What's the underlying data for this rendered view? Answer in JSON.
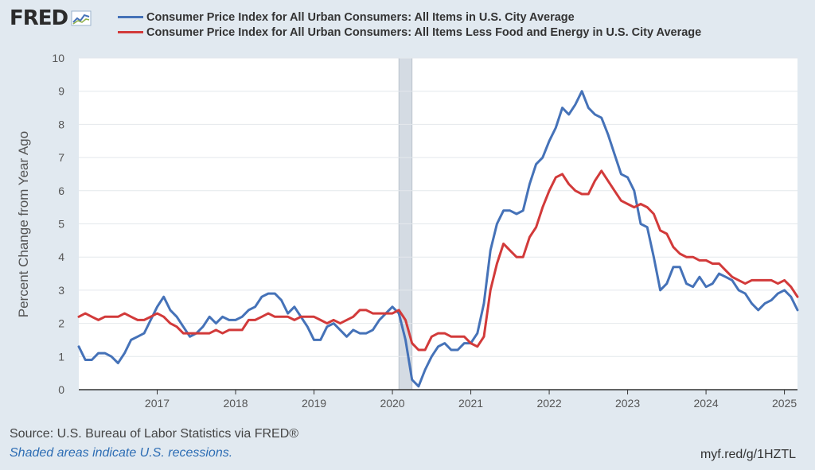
{
  "header": {
    "logo_text": "FRED",
    "logo_mark": "fred-chart-icon"
  },
  "legend": [
    {
      "label": "Consumer Price Index for All Urban Consumers: All Items in U.S. City Average",
      "color": "#4572b8"
    },
    {
      "label": "Consumer Price Index for All Urban Consumers: All Items Less Food and Energy in U.S. City Average",
      "color": "#d23a3a"
    }
  ],
  "footer": {
    "source": "Source: U.S. Bureau of Labor Statistics via FRED®",
    "note": "Shaded areas indicate U.S. recessions.",
    "url": "myf.red/g/1HZTL"
  },
  "chart_data": {
    "type": "line",
    "ylabel": "Percent Change from Year Ago",
    "ylim": [
      0,
      10
    ],
    "xlim": [
      "2016-01",
      "2025-03"
    ],
    "yticks": [
      0,
      1,
      2,
      3,
      4,
      5,
      6,
      7,
      8,
      9,
      10
    ],
    "xticks": [
      "2017",
      "2018",
      "2019",
      "2020",
      "2021",
      "2022",
      "2023",
      "2024",
      "2025"
    ],
    "grid": true,
    "recessions": [
      [
        "2020-02",
        "2020-04"
      ]
    ],
    "series": [
      {
        "name": "Consumer Price Index for All Urban Consumers: All Items in U.S. City Average",
        "color": "#4572b8",
        "points": [
          [
            "2016-01",
            1.3
          ],
          [
            "2016-02",
            0.9
          ],
          [
            "2016-03",
            0.9
          ],
          [
            "2016-04",
            1.1
          ],
          [
            "2016-05",
            1.1
          ],
          [
            "2016-06",
            1.0
          ],
          [
            "2016-07",
            0.8
          ],
          [
            "2016-08",
            1.1
          ],
          [
            "2016-09",
            1.5
          ],
          [
            "2016-10",
            1.6
          ],
          [
            "2016-11",
            1.7
          ],
          [
            "2016-12",
            2.1
          ],
          [
            "2017-01",
            2.5
          ],
          [
            "2017-02",
            2.8
          ],
          [
            "2017-03",
            2.4
          ],
          [
            "2017-04",
            2.2
          ],
          [
            "2017-05",
            1.9
          ],
          [
            "2017-06",
            1.6
          ],
          [
            "2017-07",
            1.7
          ],
          [
            "2017-08",
            1.9
          ],
          [
            "2017-09",
            2.2
          ],
          [
            "2017-10",
            2.0
          ],
          [
            "2017-11",
            2.2
          ],
          [
            "2017-12",
            2.1
          ],
          [
            "2018-01",
            2.1
          ],
          [
            "2018-02",
            2.2
          ],
          [
            "2018-03",
            2.4
          ],
          [
            "2018-04",
            2.5
          ],
          [
            "2018-05",
            2.8
          ],
          [
            "2018-06",
            2.9
          ],
          [
            "2018-07",
            2.9
          ],
          [
            "2018-08",
            2.7
          ],
          [
            "2018-09",
            2.3
          ],
          [
            "2018-10",
            2.5
          ],
          [
            "2018-11",
            2.2
          ],
          [
            "2018-12",
            1.9
          ],
          [
            "2019-01",
            1.5
          ],
          [
            "2019-02",
            1.5
          ],
          [
            "2019-03",
            1.9
          ],
          [
            "2019-04",
            2.0
          ],
          [
            "2019-05",
            1.8
          ],
          [
            "2019-06",
            1.6
          ],
          [
            "2019-07",
            1.8
          ],
          [
            "2019-08",
            1.7
          ],
          [
            "2019-09",
            1.7
          ],
          [
            "2019-10",
            1.8
          ],
          [
            "2019-11",
            2.1
          ],
          [
            "2019-12",
            2.3
          ],
          [
            "2020-01",
            2.5
          ],
          [
            "2020-02",
            2.3
          ],
          [
            "2020-03",
            1.5
          ],
          [
            "2020-04",
            0.3
          ],
          [
            "2020-05",
            0.1
          ],
          [
            "2020-06",
            0.6
          ],
          [
            "2020-07",
            1.0
          ],
          [
            "2020-08",
            1.3
          ],
          [
            "2020-09",
            1.4
          ],
          [
            "2020-10",
            1.2
          ],
          [
            "2020-11",
            1.2
          ],
          [
            "2020-12",
            1.4
          ],
          [
            "2021-01",
            1.4
          ],
          [
            "2021-02",
            1.7
          ],
          [
            "2021-03",
            2.6
          ],
          [
            "2021-04",
            4.2
          ],
          [
            "2021-05",
            5.0
          ],
          [
            "2021-06",
            5.4
          ],
          [
            "2021-07",
            5.4
          ],
          [
            "2021-08",
            5.3
          ],
          [
            "2021-09",
            5.4
          ],
          [
            "2021-10",
            6.2
          ],
          [
            "2021-11",
            6.8
          ],
          [
            "2021-12",
            7.0
          ],
          [
            "2022-01",
            7.5
          ],
          [
            "2022-02",
            7.9
          ],
          [
            "2022-03",
            8.5
          ],
          [
            "2022-04",
            8.3
          ],
          [
            "2022-05",
            8.6
          ],
          [
            "2022-06",
            9.0
          ],
          [
            "2022-07",
            8.5
          ],
          [
            "2022-08",
            8.3
          ],
          [
            "2022-09",
            8.2
          ],
          [
            "2022-10",
            7.7
          ],
          [
            "2022-11",
            7.1
          ],
          [
            "2022-12",
            6.5
          ],
          [
            "2023-01",
            6.4
          ],
          [
            "2023-02",
            6.0
          ],
          [
            "2023-03",
            5.0
          ],
          [
            "2023-04",
            4.9
          ],
          [
            "2023-05",
            4.0
          ],
          [
            "2023-06",
            3.0
          ],
          [
            "2023-07",
            3.2
          ],
          [
            "2023-08",
            3.7
          ],
          [
            "2023-09",
            3.7
          ],
          [
            "2023-10",
            3.2
          ],
          [
            "2023-11",
            3.1
          ],
          [
            "2023-12",
            3.4
          ],
          [
            "2024-01",
            3.1
          ],
          [
            "2024-02",
            3.2
          ],
          [
            "2024-03",
            3.5
          ],
          [
            "2024-04",
            3.4
          ],
          [
            "2024-05",
            3.3
          ],
          [
            "2024-06",
            3.0
          ],
          [
            "2024-07",
            2.9
          ],
          [
            "2024-08",
            2.6
          ],
          [
            "2024-09",
            2.4
          ],
          [
            "2024-10",
            2.6
          ],
          [
            "2024-11",
            2.7
          ],
          [
            "2024-12",
            2.9
          ],
          [
            "2025-01",
            3.0
          ],
          [
            "2025-02",
            2.8
          ],
          [
            "2025-03",
            2.4
          ]
        ]
      },
      {
        "name": "Consumer Price Index for All Urban Consumers: All Items Less Food and Energy in U.S. City Average",
        "color": "#d23a3a",
        "points": [
          [
            "2016-01",
            2.2
          ],
          [
            "2016-02",
            2.3
          ],
          [
            "2016-03",
            2.2
          ],
          [
            "2016-04",
            2.1
          ],
          [
            "2016-05",
            2.2
          ],
          [
            "2016-06",
            2.2
          ],
          [
            "2016-07",
            2.2
          ],
          [
            "2016-08",
            2.3
          ],
          [
            "2016-09",
            2.2
          ],
          [
            "2016-10",
            2.1
          ],
          [
            "2016-11",
            2.1
          ],
          [
            "2016-12",
            2.2
          ],
          [
            "2017-01",
            2.3
          ],
          [
            "2017-02",
            2.2
          ],
          [
            "2017-03",
            2.0
          ],
          [
            "2017-04",
            1.9
          ],
          [
            "2017-05",
            1.7
          ],
          [
            "2017-06",
            1.7
          ],
          [
            "2017-07",
            1.7
          ],
          [
            "2017-08",
            1.7
          ],
          [
            "2017-09",
            1.7
          ],
          [
            "2017-10",
            1.8
          ],
          [
            "2017-11",
            1.7
          ],
          [
            "2017-12",
            1.8
          ],
          [
            "2018-01",
            1.8
          ],
          [
            "2018-02",
            1.8
          ],
          [
            "2018-03",
            2.1
          ],
          [
            "2018-04",
            2.1
          ],
          [
            "2018-05",
            2.2
          ],
          [
            "2018-06",
            2.3
          ],
          [
            "2018-07",
            2.2
          ],
          [
            "2018-08",
            2.2
          ],
          [
            "2018-09",
            2.2
          ],
          [
            "2018-10",
            2.1
          ],
          [
            "2018-11",
            2.2
          ],
          [
            "2018-12",
            2.2
          ],
          [
            "2019-01",
            2.2
          ],
          [
            "2019-02",
            2.1
          ],
          [
            "2019-03",
            2.0
          ],
          [
            "2019-04",
            2.1
          ],
          [
            "2019-05",
            2.0
          ],
          [
            "2019-06",
            2.1
          ],
          [
            "2019-07",
            2.2
          ],
          [
            "2019-08",
            2.4
          ],
          [
            "2019-09",
            2.4
          ],
          [
            "2019-10",
            2.3
          ],
          [
            "2019-11",
            2.3
          ],
          [
            "2019-12",
            2.3
          ],
          [
            "2020-01",
            2.3
          ],
          [
            "2020-02",
            2.4
          ],
          [
            "2020-03",
            2.1
          ],
          [
            "2020-04",
            1.4
          ],
          [
            "2020-05",
            1.2
          ],
          [
            "2020-06",
            1.2
          ],
          [
            "2020-07",
            1.6
          ],
          [
            "2020-08",
            1.7
          ],
          [
            "2020-09",
            1.7
          ],
          [
            "2020-10",
            1.6
          ],
          [
            "2020-11",
            1.6
          ],
          [
            "2020-12",
            1.6
          ],
          [
            "2021-01",
            1.4
          ],
          [
            "2021-02",
            1.3
          ],
          [
            "2021-03",
            1.6
          ],
          [
            "2021-04",
            3.0
          ],
          [
            "2021-05",
            3.8
          ],
          [
            "2021-06",
            4.4
          ],
          [
            "2021-07",
            4.2
          ],
          [
            "2021-08",
            4.0
          ],
          [
            "2021-09",
            4.0
          ],
          [
            "2021-10",
            4.6
          ],
          [
            "2021-11",
            4.9
          ],
          [
            "2021-12",
            5.5
          ],
          [
            "2022-01",
            6.0
          ],
          [
            "2022-02",
            6.4
          ],
          [
            "2022-03",
            6.5
          ],
          [
            "2022-04",
            6.2
          ],
          [
            "2022-05",
            6.0
          ],
          [
            "2022-06",
            5.9
          ],
          [
            "2022-07",
            5.9
          ],
          [
            "2022-08",
            6.3
          ],
          [
            "2022-09",
            6.6
          ],
          [
            "2022-10",
            6.3
          ],
          [
            "2022-11",
            6.0
          ],
          [
            "2022-12",
            5.7
          ],
          [
            "2023-01",
            5.6
          ],
          [
            "2023-02",
            5.5
          ],
          [
            "2023-03",
            5.6
          ],
          [
            "2023-04",
            5.5
          ],
          [
            "2023-05",
            5.3
          ],
          [
            "2023-06",
            4.8
          ],
          [
            "2023-07",
            4.7
          ],
          [
            "2023-08",
            4.3
          ],
          [
            "2023-09",
            4.1
          ],
          [
            "2023-10",
            4.0
          ],
          [
            "2023-11",
            4.0
          ],
          [
            "2023-12",
            3.9
          ],
          [
            "2024-01",
            3.9
          ],
          [
            "2024-02",
            3.8
          ],
          [
            "2024-03",
            3.8
          ],
          [
            "2024-04",
            3.6
          ],
          [
            "2024-05",
            3.4
          ],
          [
            "2024-06",
            3.3
          ],
          [
            "2024-07",
            3.2
          ],
          [
            "2024-08",
            3.3
          ],
          [
            "2024-09",
            3.3
          ],
          [
            "2024-10",
            3.3
          ],
          [
            "2024-11",
            3.3
          ],
          [
            "2024-12",
            3.2
          ],
          [
            "2025-01",
            3.3
          ],
          [
            "2025-02",
            3.1
          ],
          [
            "2025-03",
            2.8
          ]
        ]
      }
    ]
  }
}
